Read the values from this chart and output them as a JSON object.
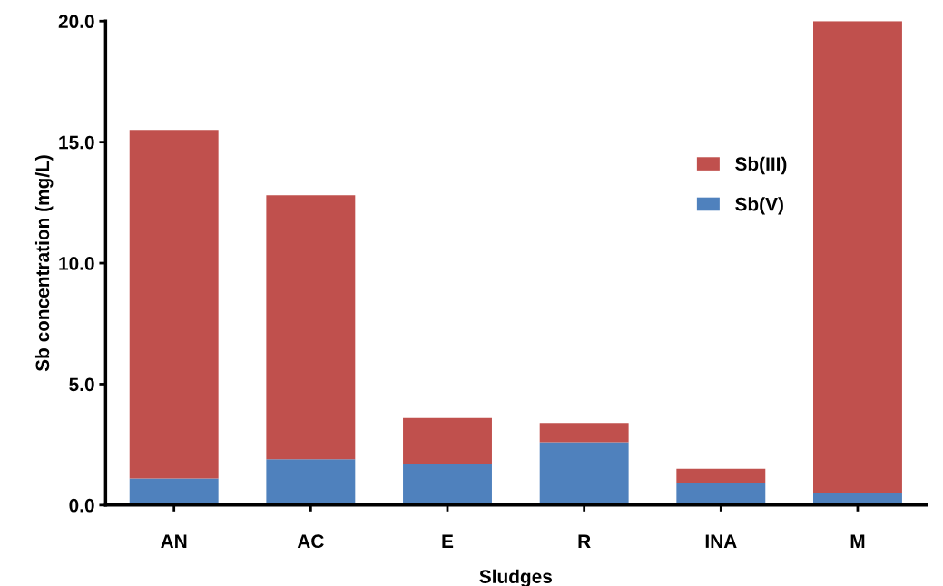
{
  "chart_data": {
    "type": "bar",
    "stacked": true,
    "xlabel": "Sludges",
    "ylabel": "Sb concentration (mg/L)",
    "categories": [
      "AN",
      "AC",
      "E",
      "R",
      "INA",
      "M"
    ],
    "series": [
      {
        "name": "Sb(V)",
        "color": "#4f81bd",
        "values": [
          1.1,
          1.9,
          1.7,
          2.6,
          0.9,
          0.5
        ]
      },
      {
        "name": "Sb(III)",
        "color": "#c0504d",
        "values": [
          14.4,
          10.9,
          1.9,
          0.8,
          0.6,
          19.5
        ]
      }
    ],
    "ylim": [
      0,
      20
    ],
    "yticks": [
      {
        "value": 0,
        "label": "0.0"
      },
      {
        "value": 5,
        "label": "5.0"
      },
      {
        "value": 10,
        "label": "10.0"
      },
      {
        "value": 15,
        "label": "15.0"
      },
      {
        "value": 20,
        "label": "20.0"
      }
    ],
    "grid": false,
    "legend": "right"
  }
}
